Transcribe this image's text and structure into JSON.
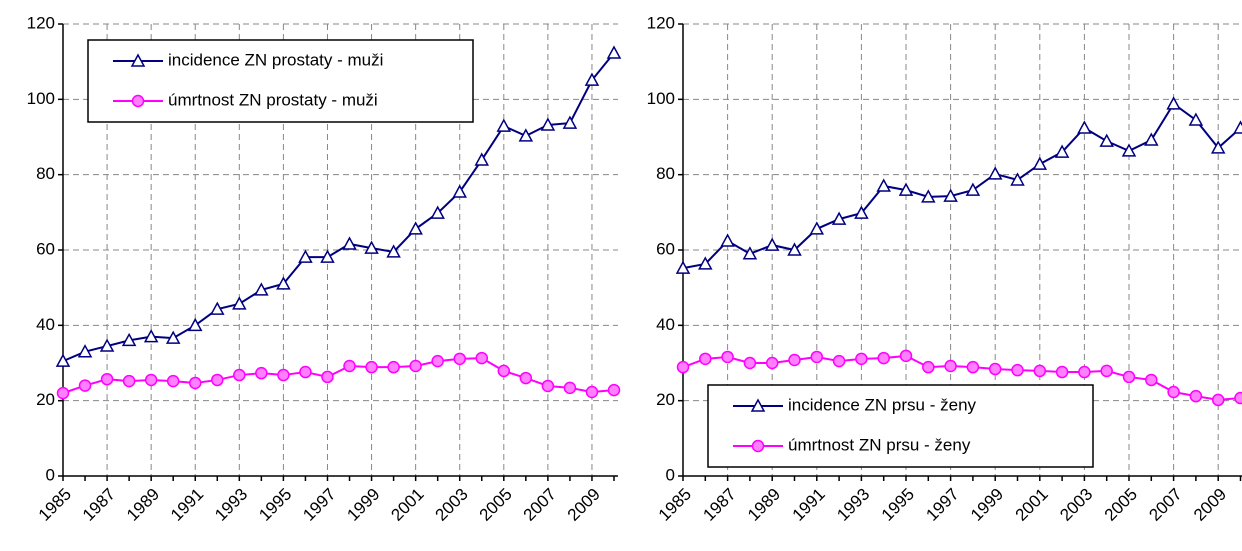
{
  "chart_data": [
    {
      "type": "line",
      "categories": [
        "1985",
        null,
        "1987",
        null,
        "1989",
        null,
        "1991",
        null,
        "1993",
        null,
        "1995",
        null,
        "1997",
        null,
        "1999",
        null,
        "2001",
        null,
        "2003",
        null,
        "2005",
        null,
        "2007",
        null,
        "2009",
        null
      ],
      "series": [
        {
          "name": "incidence ZN prostaty - muži",
          "color": "#000080",
          "marker": "triangle",
          "values": [
            30.5,
            33,
            34.5,
            36,
            37,
            36.6,
            40,
            44.3,
            45.7,
            49.4,
            51,
            58.1,
            58.1,
            61.6,
            60.5,
            59.5,
            65.6,
            69.8,
            75.4,
            83.9,
            92.9,
            90.3,
            93.2,
            93.7,
            105.1,
            112.3
          ]
        },
        {
          "name": "úmrtnost ZN prostaty - muži",
          "color": "#ff00ff",
          "marker": "circle",
          "values": [
            22,
            24,
            25.7,
            25.2,
            25.5,
            25.2,
            24.7,
            25.5,
            26.8,
            27.3,
            26.8,
            27.6,
            26.3,
            29.2,
            28.9,
            28.9,
            29.2,
            30.5,
            31.1,
            31.3,
            27.9,
            26,
            23.9,
            23.4,
            22.3,
            22.8
          ]
        }
      ],
      "ylim": [
        0,
        120
      ],
      "yticks": [
        0,
        20,
        40,
        60,
        80,
        100,
        120
      ],
      "grid": true,
      "legend": "upper left"
    },
    {
      "type": "line",
      "categories": [
        "1985",
        null,
        "1987",
        null,
        "1989",
        null,
        "1991",
        null,
        "1993",
        null,
        "1995",
        null,
        "1997",
        null,
        "1999",
        null,
        "2001",
        null,
        "2003",
        null,
        "2005",
        null,
        "2007",
        null,
        "2009",
        null
      ],
      "series": [
        {
          "name": "incidence ZN prsu - ženy",
          "color": "#000080",
          "marker": "triangle",
          "values": [
            55.2,
            56.3,
            62.4,
            59,
            61.3,
            60,
            65.6,
            68.2,
            69.8,
            77,
            75.9,
            74.1,
            74.3,
            75.9,
            80.2,
            78.6,
            82.8,
            86,
            92.4,
            88.9,
            86.3,
            89.2,
            98.8,
            94.5,
            87.1,
            92.4
          ]
        },
        {
          "name": "úmrtnost ZN prsu - ženy",
          "color": "#ff00ff",
          "marker": "circle",
          "values": [
            28.9,
            31.1,
            31.6,
            30,
            30,
            30.8,
            31.6,
            30.5,
            31.1,
            31.3,
            31.9,
            28.9,
            29.2,
            28.9,
            28.4,
            28.1,
            27.9,
            27.6,
            27.6,
            27.9,
            26.3,
            25.5,
            22.3,
            21.2,
            20.2,
            20.7
          ]
        }
      ],
      "ylim": [
        0,
        120
      ],
      "yticks": [
        0,
        20,
        40,
        60,
        80,
        100,
        120
      ],
      "grid": true,
      "legend": "lower left"
    }
  ]
}
